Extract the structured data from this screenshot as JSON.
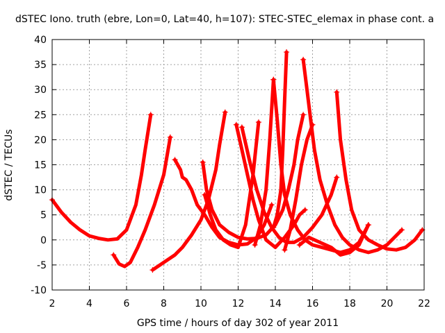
{
  "chart_data": {
    "type": "line",
    "title": "dSTEC Iono. truth (ebre, Lon=0, Lat=40, h=107): STEC-STEC_elemax in phase cont. a",
    "xlabel": "GPS time / hours of day 302 of year 2011",
    "ylabel": "dSTEC  / TECUs",
    "xlim": [
      2,
      22
    ],
    "ylim": [
      -10,
      40
    ],
    "x_ticks": [
      "2",
      "4",
      "6",
      "8",
      "10",
      "12",
      "14",
      "16",
      "18",
      "20",
      "22"
    ],
    "y_ticks": [
      "-10",
      "-5",
      "0",
      "5",
      "10",
      "15",
      "20",
      "25",
      "30",
      "35",
      "40"
    ],
    "grid": true,
    "line_color": "#ff0000",
    "series": [
      {
        "x": [
          2.0,
          2.5,
          3.0,
          3.5,
          4.0,
          4.5,
          5.0,
          5.5,
          6.0,
          6.5,
          6.8,
          7.0,
          7.3
        ],
        "y": [
          8,
          5.5,
          3.5,
          2,
          0.8,
          0.3,
          0,
          0.2,
          2,
          7,
          13,
          18,
          25
        ]
      },
      {
        "x": [
          5.3,
          5.6,
          5.9,
          6.2,
          6.6,
          7.0,
          7.5,
          8.0,
          8.35
        ],
        "y": [
          -3,
          -4.8,
          -5.3,
          -4.5,
          -1.5,
          2,
          7,
          13,
          20.5
        ]
      },
      {
        "x": [
          7.4,
          7.8,
          8.2,
          8.6,
          9.0,
          9.5,
          10.0,
          10.4,
          10.8,
          11.0,
          11.3
        ],
        "y": [
          -6,
          -5,
          -4,
          -3,
          -1.5,
          1,
          4,
          8,
          14,
          19,
          25.5
        ]
      },
      {
        "x": [
          8.6,
          8.9,
          9.0,
          9.2,
          9.5,
          9.8,
          10.2,
          10.6,
          11.0,
          11.5,
          12.0,
          12.5,
          13.0,
          13.4,
          13.8
        ],
        "y": [
          16,
          14,
          12.5,
          12,
          10,
          7,
          5,
          2.5,
          0.5,
          -0.5,
          -1,
          -0.8,
          0.5,
          3,
          7
        ]
      },
      {
        "x": [
          10.1,
          10.3,
          10.6,
          11.0,
          11.5,
          12.0,
          12.5,
          13.0,
          13.5,
          14.0,
          14.4,
          14.7,
          15.0,
          15.2,
          15.5
        ],
        "y": [
          15.5,
          10,
          6,
          3,
          1.5,
          0.5,
          0.2,
          0.3,
          1,
          3,
          6,
          10,
          15,
          20,
          25
        ]
      },
      {
        "x": [
          10.2,
          10.5,
          10.8,
          11.2,
          11.6,
          12.0,
          12.4,
          12.8,
          13.1
        ],
        "y": [
          9,
          5,
          2,
          0,
          -1,
          -1.5,
          3,
          13,
          23.5
        ]
      },
      {
        "x": [
          11.9,
          12.2,
          12.5,
          12.8,
          13.1,
          13.5,
          14.0,
          14.5,
          15.0,
          15.3,
          15.6
        ],
        "y": [
          23,
          18,
          13,
          8,
          4,
          0,
          -1.5,
          0.5,
          3,
          5,
          6
        ]
      },
      {
        "x": [
          12.2,
          12.6,
          13.0,
          13.4,
          13.8,
          14.2,
          14.6,
          15.0,
          15.5,
          16.0,
          16.5,
          17.0,
          17.3
        ],
        "y": [
          22.5,
          16,
          10,
          5.5,
          2.5,
          0.5,
          -0.5,
          -0.5,
          0.5,
          2.5,
          5,
          9,
          12.5
        ]
      },
      {
        "x": [
          12.9,
          13.2,
          13.5,
          13.7,
          13.9
        ],
        "y": [
          -1,
          3,
          10,
          20,
          32
        ]
      },
      {
        "x": [
          13.9,
          14.1,
          14.3,
          14.5,
          14.8,
          15.2,
          15.6,
          16.0,
          16.5,
          17.0,
          17.5,
          18.0,
          18.5,
          19.0
        ],
        "y": [
          32,
          24,
          15,
          9,
          5,
          2,
          0,
          -1,
          -1.5,
          -2,
          -2.5,
          -2,
          -0.5,
          3
        ]
      },
      {
        "x": [
          14.6,
          14.5,
          14.4,
          14.3,
          14.1,
          13.9
        ],
        "y": [
          37.5,
          28,
          18,
          10,
          5,
          2.5
        ]
      },
      {
        "x": [
          15.5,
          15.7,
          15.9,
          16.1,
          16.4,
          16.8,
          17.2,
          17.6,
          18.0,
          18.5,
          19.0,
          19.5,
          20.0,
          20.4,
          20.8
        ],
        "y": [
          36,
          30,
          24,
          18,
          12,
          7,
          3,
          0.5,
          -1,
          -2,
          -2.5,
          -2,
          -1,
          0.5,
          2
        ]
      },
      {
        "x": [
          14.5,
          14.8,
          15.1,
          15.4,
          15.7,
          16.0
        ],
        "y": [
          -2,
          2,
          8,
          15,
          20,
          23
        ]
      },
      {
        "x": [
          17.3,
          17.5,
          17.8,
          18.1,
          18.5,
          19.0,
          19.5,
          20.0,
          20.5,
          21.0,
          21.5,
          21.9
        ],
        "y": [
          29.5,
          20,
          12,
          6,
          2,
          0,
          -1,
          -1.8,
          -2,
          -1.5,
          0,
          2
        ]
      },
      {
        "x": [
          15.3,
          15.8,
          16.4,
          17.0,
          17.5,
          18.0,
          18.5,
          19.0
        ],
        "y": [
          -1,
          0.5,
          -0.5,
          -1.5,
          -3,
          -2.5,
          -1,
          3
        ]
      }
    ]
  }
}
